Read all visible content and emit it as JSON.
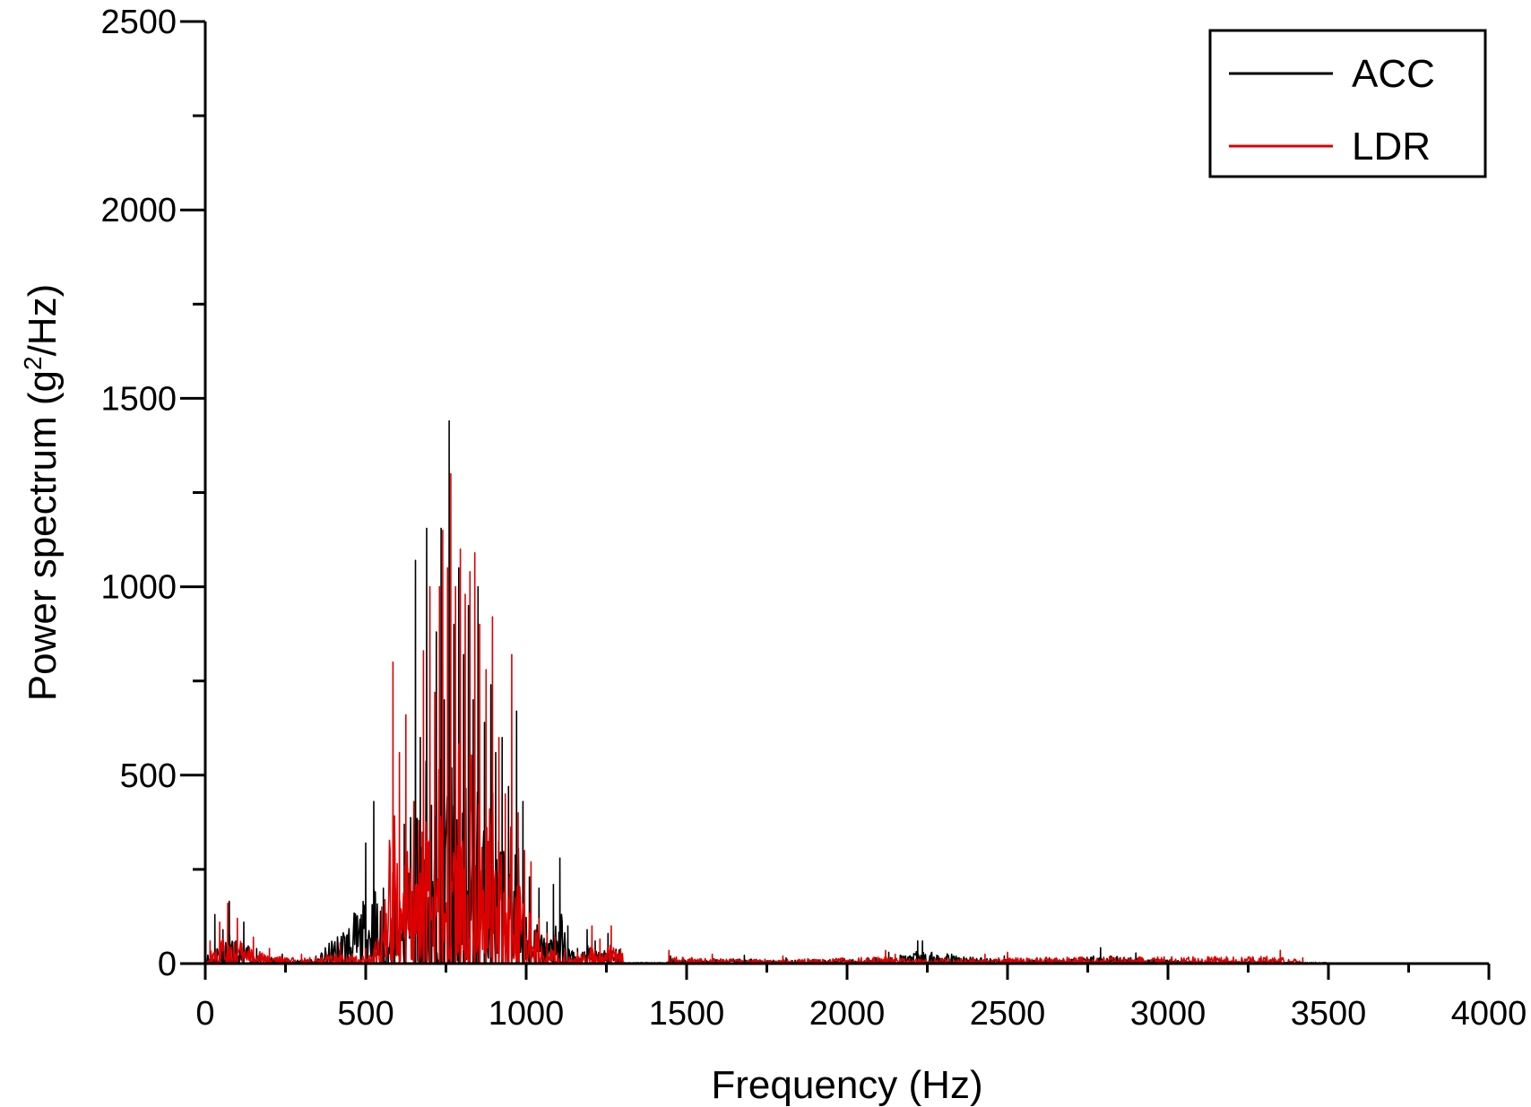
{
  "chart_data": {
    "type": "line",
    "title": "",
    "xlabel": "Frequency (Hz)",
    "ylabel": {
      "prefix": "Power spectrum (g",
      "sup": "2",
      "suffix": "/Hz)"
    },
    "xlim": [
      0,
      4000
    ],
    "ylim": [
      0,
      2500
    ],
    "x_ticks": [
      0,
      500,
      1000,
      1500,
      2000,
      2500,
      3000,
      3500,
      4000
    ],
    "y_ticks": [
      0,
      500,
      1000,
      1500,
      2000,
      2500
    ],
    "grid": false,
    "legend": {
      "placement": "top-right",
      "entries": [
        "ACC",
        "LDR"
      ]
    },
    "series": [
      {
        "name": "ACC",
        "color": "#000000",
        "peaks": [
          [
            30,
            130
          ],
          [
            55,
            90
          ],
          [
            75,
            165
          ],
          [
            95,
            60
          ],
          [
            120,
            110
          ],
          [
            160,
            40
          ],
          [
            240,
            25
          ],
          [
            345,
            20
          ],
          [
            500,
            320
          ],
          [
            525,
            430
          ],
          [
            555,
            200
          ],
          [
            590,
            260
          ],
          [
            620,
            370
          ],
          [
            655,
            1070
          ],
          [
            670,
            600
          ],
          [
            690,
            1155
          ],
          [
            705,
            420
          ],
          [
            720,
            880
          ],
          [
            735,
            1155
          ],
          [
            745,
            700
          ],
          [
            760,
            1440
          ],
          [
            775,
            900
          ],
          [
            790,
            1050
          ],
          [
            805,
            820
          ],
          [
            820,
            950
          ],
          [
            835,
            700
          ],
          [
            850,
            1000
          ],
          [
            870,
            640
          ],
          [
            890,
            740
          ],
          [
            905,
            560
          ],
          [
            925,
            600
          ],
          [
            945,
            470
          ],
          [
            970,
            670
          ],
          [
            990,
            430
          ],
          [
            1010,
            230
          ],
          [
            1040,
            200
          ],
          [
            1065,
            110
          ],
          [
            1085,
            210
          ],
          [
            1105,
            280
          ],
          [
            1130,
            100
          ],
          [
            1160,
            40
          ],
          [
            1190,
            90
          ],
          [
            1215,
            60
          ],
          [
            1255,
            80
          ],
          [
            1450,
            20
          ],
          [
            1680,
            22
          ],
          [
            1810,
            15
          ],
          [
            2130,
            30
          ],
          [
            2220,
            60
          ],
          [
            2235,
            60
          ],
          [
            2490,
            20
          ],
          [
            2630,
            15
          ],
          [
            2790,
            42
          ],
          [
            2900,
            28
          ],
          [
            3150,
            10
          ],
          [
            3350,
            12
          ]
        ]
      },
      {
        "name": "LDR",
        "color": "#dd0000",
        "peaks": [
          [
            15,
            60
          ],
          [
            45,
            110
          ],
          [
            70,
            160
          ],
          [
            100,
            120
          ],
          [
            150,
            70
          ],
          [
            200,
            40
          ],
          [
            300,
            25
          ],
          [
            420,
            55
          ],
          [
            500,
            40
          ],
          [
            550,
            150
          ],
          [
            585,
            800
          ],
          [
            605,
            560
          ],
          [
            625,
            660
          ],
          [
            650,
            430
          ],
          [
            665,
            380
          ],
          [
            680,
            830
          ],
          [
            700,
            1000
          ],
          [
            715,
            720
          ],
          [
            730,
            1000
          ],
          [
            740,
            1150
          ],
          [
            755,
            1050
          ],
          [
            765,
            1300
          ],
          [
            780,
            1000
          ],
          [
            795,
            1100
          ],
          [
            810,
            980
          ],
          [
            825,
            1040
          ],
          [
            840,
            1090
          ],
          [
            855,
            900
          ],
          [
            875,
            780
          ],
          [
            895,
            920
          ],
          [
            915,
            600
          ],
          [
            935,
            450
          ],
          [
            955,
            820
          ],
          [
            975,
            400
          ],
          [
            995,
            300
          ],
          [
            1015,
            270
          ],
          [
            1040,
            120
          ],
          [
            1065,
            80
          ],
          [
            1090,
            70
          ],
          [
            1120,
            35
          ],
          [
            1160,
            30
          ],
          [
            1205,
            100
          ],
          [
            1230,
            65
          ],
          [
            1265,
            100
          ],
          [
            1445,
            35
          ],
          [
            1580,
            25
          ],
          [
            1800,
            20
          ],
          [
            2120,
            35
          ],
          [
            2150,
            25
          ],
          [
            2430,
            25
          ],
          [
            2500,
            30
          ],
          [
            3350,
            35
          ],
          [
            3420,
            15
          ]
        ]
      }
    ]
  }
}
